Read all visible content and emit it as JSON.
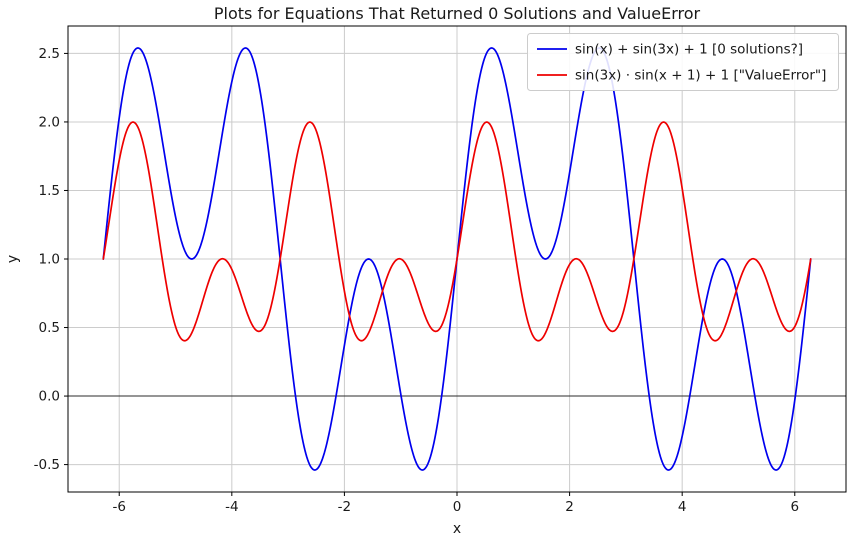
{
  "chart_data": {
    "type": "line",
    "title": "Plots for Equations That Returned 0 Solutions and ValueError",
    "xlabel": "x",
    "ylabel": "y",
    "xlim": [
      -6.91,
      6.91
    ],
    "ylim": [
      -0.7,
      2.7
    ],
    "x_range": [
      -6.283185307,
      6.283185307
    ],
    "samples": 800,
    "grid": true,
    "grid_color": "#cccccc",
    "zero_line": true,
    "zero_line_color": "#2b2b2b",
    "spine_color": "#000000",
    "x_ticks": [
      -6,
      -4,
      -2,
      0,
      2,
      4,
      6
    ],
    "x_tick_labels": [
      "-6",
      "-4",
      "-2",
      "0",
      "2",
      "4",
      "6"
    ],
    "y_ticks": [
      -0.5,
      0.0,
      0.5,
      1.0,
      1.5,
      2.0,
      2.5
    ],
    "y_tick_labels": [
      "-0.5",
      "0.0",
      "0.5",
      "1.0",
      "1.5",
      "2.0",
      "2.5"
    ],
    "legend_position": "upper right",
    "series": [
      {
        "name": "sin(x) + sin(3x) + 1 [0 solutions?]",
        "expression": "sin(x) + sin(3*x) + 1",
        "color": "#0000ee"
      },
      {
        "name": "sin(3x) ⋅ sin(x + 1) + 1 [\"ValueError\"]",
        "expression": "sin(3*x) * sin(x + 1) + 1",
        "color": "#ee0000"
      }
    ]
  }
}
